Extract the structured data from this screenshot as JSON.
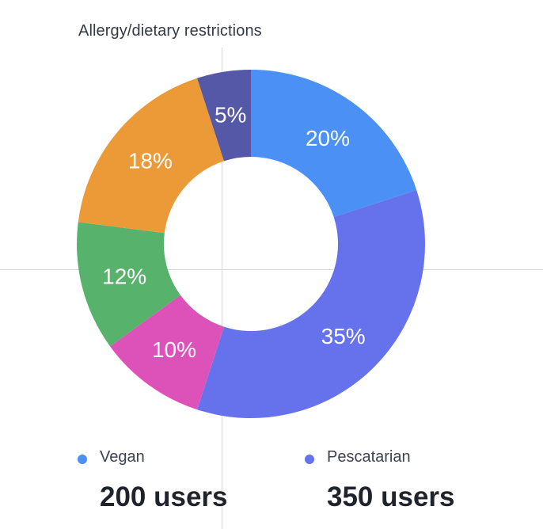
{
  "chart_data": {
    "type": "pie",
    "title": "Allergy/dietary restrictions",
    "series": [
      {
        "label": "20%",
        "value": 20,
        "color": "#4a90f5",
        "name": "Vegan"
      },
      {
        "label": "35%",
        "value": 35,
        "color": "#6672ec",
        "name": "Pescatarian"
      },
      {
        "label": "10%",
        "value": 10,
        "color": "#dd52b9"
      },
      {
        "label": "12%",
        "value": 12,
        "color": "#57b26b"
      },
      {
        "label": "18%",
        "value": 18,
        "color": "#eb9a37"
      },
      {
        "label": "5%",
        "value": 5,
        "color": "#5558a6"
      }
    ]
  },
  "legend": [
    {
      "name": "Vegan",
      "value_text": "200 users",
      "color": "#4a90f5"
    },
    {
      "name": "Pescatarian",
      "value_text": "350 users",
      "color": "#6672ec"
    }
  ]
}
